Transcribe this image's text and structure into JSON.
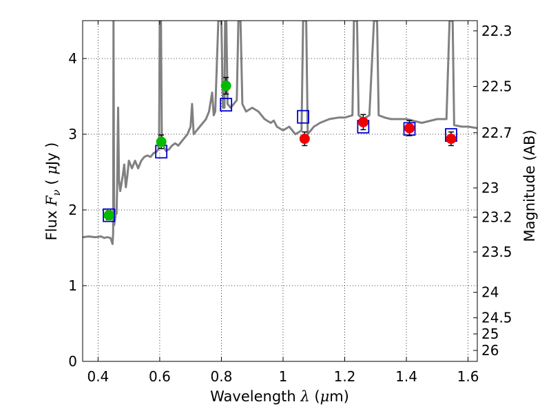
{
  "chart_data": {
    "type": "scatter",
    "title": "",
    "xlabel": {
      "prefix": "Wavelength ",
      "symbol": "λ",
      "suffix": " (",
      "mu": "μ",
      "unit": "m)"
    },
    "ylabel": {
      "prefix": "Flux ",
      "symbol": "F",
      "sub": "ν",
      "mid": " ( ",
      "mu": "μ",
      "unit": "Jy )"
    },
    "ylabel_right": "Magnitude (AB)",
    "xlim": [
      0.35,
      1.63
    ],
    "ylim": [
      0,
      4.5
    ],
    "x_ticks": [
      {
        "v": 0.4,
        "label": "0.4"
      },
      {
        "v": 0.6,
        "label": "0.6"
      },
      {
        "v": 0.8,
        "label": "0.8"
      },
      {
        "v": 1.0,
        "label": "1"
      },
      {
        "v": 1.2,
        "label": "1.2"
      },
      {
        "v": 1.4,
        "label": "1.4"
      },
      {
        "v": 1.6,
        "label": "1.6"
      }
    ],
    "y_ticks": [
      {
        "v": 0,
        "label": "0"
      },
      {
        "v": 1,
        "label": "1"
      },
      {
        "v": 2,
        "label": "2"
      },
      {
        "v": 3,
        "label": "3"
      },
      {
        "v": 4,
        "label": "4"
      }
    ],
    "right_ticks": [
      {
        "v": 22.3,
        "label": "22.3"
      },
      {
        "v": 22.5,
        "label": "22.5"
      },
      {
        "v": 22.7,
        "label": "22.7"
      },
      {
        "v": 23.0,
        "label": "23"
      },
      {
        "v": 23.2,
        "label": "23.2"
      },
      {
        "v": 23.5,
        "label": "23.5"
      },
      {
        "v": 24.0,
        "label": "24"
      },
      {
        "v": 24.5,
        "label": "24.5"
      },
      {
        "v": 25.0,
        "label": "25"
      },
      {
        "v": 26.0,
        "label": "26"
      }
    ],
    "grid": true,
    "colors": {
      "spectrum": "#808080",
      "model": "#0000cc",
      "green_points": "#00bb00",
      "red_points": "#ee0000",
      "errorbar": "#000000"
    },
    "series": [
      {
        "type": "line",
        "values": [
          [
            0.35,
            1.64
          ],
          [
            0.37,
            1.65
          ],
          [
            0.39,
            1.64
          ],
          [
            0.41,
            1.65
          ],
          [
            0.42,
            1.63
          ],
          [
            0.43,
            1.64
          ],
          [
            0.44,
            1.63
          ],
          [
            0.443,
            1.6
          ],
          [
            0.447,
            1.55
          ],
          [
            0.449,
            1.7
          ],
          [
            0.45,
            4.5
          ],
          [
            0.452,
            1.8
          ],
          [
            0.454,
            1.85
          ],
          [
            0.456,
            1.9
          ],
          [
            0.458,
            2.0
          ],
          [
            0.46,
            1.95
          ],
          [
            0.462,
            2.3
          ],
          [
            0.465,
            3.35
          ],
          [
            0.468,
            2.4
          ],
          [
            0.472,
            2.25
          ],
          [
            0.48,
            2.45
          ],
          [
            0.485,
            2.6
          ],
          [
            0.49,
            2.3
          ],
          [
            0.495,
            2.45
          ],
          [
            0.5,
            2.65
          ],
          [
            0.505,
            2.6
          ],
          [
            0.51,
            2.55
          ],
          [
            0.52,
            2.65
          ],
          [
            0.53,
            2.55
          ],
          [
            0.54,
            2.65
          ],
          [
            0.55,
            2.7
          ],
          [
            0.56,
            2.72
          ],
          [
            0.57,
            2.7
          ],
          [
            0.58,
            2.75
          ],
          [
            0.59,
            2.77
          ],
          [
            0.595,
            2.8
          ],
          [
            0.598,
            2.9
          ],
          [
            0.6,
            4.5
          ],
          [
            0.604,
            4.5
          ],
          [
            0.607,
            2.9
          ],
          [
            0.612,
            2.85
          ],
          [
            0.62,
            2.78
          ],
          [
            0.63,
            2.8
          ],
          [
            0.64,
            2.85
          ],
          [
            0.65,
            2.88
          ],
          [
            0.66,
            2.85
          ],
          [
            0.67,
            2.9
          ],
          [
            0.68,
            2.95
          ],
          [
            0.69,
            3.0
          ],
          [
            0.7,
            3.1
          ],
          [
            0.705,
            3.4
          ],
          [
            0.71,
            3.0
          ],
          [
            0.72,
            3.05
          ],
          [
            0.73,
            3.1
          ],
          [
            0.74,
            3.15
          ],
          [
            0.75,
            3.2
          ],
          [
            0.76,
            3.3
          ],
          [
            0.77,
            3.55
          ],
          [
            0.775,
            3.25
          ],
          [
            0.78,
            3.3
          ],
          [
            0.79,
            4.5
          ],
          [
            0.8,
            4.5
          ],
          [
            0.805,
            3.35
          ],
          [
            0.81,
            3.35
          ],
          [
            0.812,
            4.5
          ],
          [
            0.816,
            4.5
          ],
          [
            0.82,
            3.4
          ],
          [
            0.83,
            3.35
          ],
          [
            0.84,
            3.4
          ],
          [
            0.85,
            3.45
          ],
          [
            0.855,
            4.5
          ],
          [
            0.862,
            4.5
          ],
          [
            0.868,
            3.4
          ],
          [
            0.88,
            3.3
          ],
          [
            0.9,
            3.35
          ],
          [
            0.92,
            3.3
          ],
          [
            0.94,
            3.2
          ],
          [
            0.96,
            3.15
          ],
          [
            0.97,
            3.18
          ],
          [
            0.98,
            3.1
          ],
          [
            1.0,
            3.05
          ],
          [
            1.02,
            3.1
          ],
          [
            1.04,
            3.0
          ],
          [
            1.06,
            3.05
          ],
          [
            1.065,
            4.5
          ],
          [
            1.075,
            4.5
          ],
          [
            1.08,
            3.0
          ],
          [
            1.09,
            3.05
          ],
          [
            1.1,
            3.1
          ],
          [
            1.12,
            3.15
          ],
          [
            1.15,
            3.2
          ],
          [
            1.18,
            3.22
          ],
          [
            1.2,
            3.22
          ],
          [
            1.225,
            3.25
          ],
          [
            1.23,
            4.5
          ],
          [
            1.24,
            4.5
          ],
          [
            1.245,
            3.25
          ],
          [
            1.26,
            3.2
          ],
          [
            1.28,
            3.25
          ],
          [
            1.295,
            4.5
          ],
          [
            1.305,
            4.5
          ],
          [
            1.31,
            3.25
          ],
          [
            1.33,
            3.22
          ],
          [
            1.35,
            3.2
          ],
          [
            1.4,
            3.2
          ],
          [
            1.45,
            3.15
          ],
          [
            1.5,
            3.2
          ],
          [
            1.53,
            3.2
          ],
          [
            1.54,
            4.5
          ],
          [
            1.55,
            4.5
          ],
          [
            1.555,
            3.12
          ],
          [
            1.58,
            3.1
          ],
          [
            1.6,
            3.1
          ],
          [
            1.63,
            3.08
          ]
        ]
      },
      {
        "type": "scatter",
        "marker": "square",
        "values": [
          [
            0.435,
            1.93
          ],
          [
            0.605,
            2.77
          ],
          [
            0.815,
            3.39
          ],
          [
            1.065,
            3.23
          ],
          [
            1.26,
            3.1
          ],
          [
            1.41,
            3.07
          ],
          [
            1.545,
            2.99
          ]
        ]
      },
      {
        "type": "scatter",
        "marker": "circle",
        "values": [
          [
            0.435,
            1.93
          ],
          [
            0.605,
            2.9
          ],
          [
            0.815,
            3.64
          ]
        ],
        "errors": [
          0.06,
          0.09,
          0.11
        ]
      },
      {
        "type": "scatter",
        "marker": "circle",
        "values": [
          [
            1.07,
            2.94
          ],
          [
            1.26,
            3.16
          ],
          [
            1.41,
            3.08
          ],
          [
            1.545,
            2.94
          ]
        ],
        "errors": [
          0.09,
          0.1,
          0.1,
          0.09
        ]
      }
    ]
  }
}
